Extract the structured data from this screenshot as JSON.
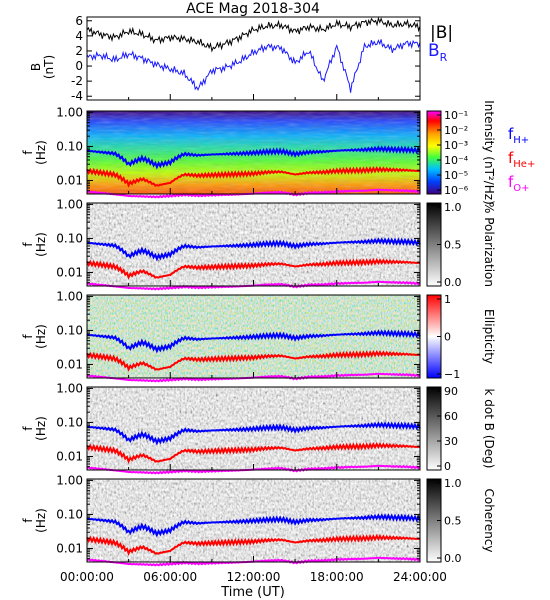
{
  "title": "ACE Mag 2018-304",
  "xlabel": "Time (UT)",
  "x_ticks": [
    "00:00:00",
    "06:00:00",
    "12:00:00",
    "18:00:00",
    "24:00:00"
  ],
  "x_range_hours": [
    0,
    24
  ],
  "colors": {
    "B_total": "#000000",
    "B_R": "#1a1aff",
    "f_H": "#0000ff",
    "f_He": "#ff0000",
    "f_O": "#ff00ff"
  },
  "chart_data": [
    {
      "type": "line",
      "ylabel": "B\n(nT)",
      "ylim": [
        -4.5,
        6.5
      ],
      "y_ticks": [
        "6",
        "4",
        "2",
        "0",
        "-2",
        "-4"
      ],
      "legend": [
        "|B|",
        "BR"
      ],
      "x_hours": [
        0,
        1,
        2,
        3,
        4,
        5,
        6,
        7,
        8,
        9,
        10,
        11,
        12,
        13,
        14,
        15,
        16,
        17,
        18,
        19,
        20,
        21,
        22,
        23,
        24
      ],
      "series": [
        {
          "name": "|B|",
          "values": [
            4.8,
            4.2,
            3.8,
            4.6,
            4.2,
            3.4,
            3.8,
            3.6,
            3.2,
            2.4,
            3.0,
            3.8,
            4.8,
            5.3,
            5.4,
            4.6,
            5.2,
            4.8,
            5.6,
            5.2,
            5.8,
            6.0,
            5.4,
            5.6,
            5.2
          ]
        },
        {
          "name": "BR",
          "values": [
            1.2,
            1.4,
            0.8,
            1.6,
            1.0,
            0.2,
            -0.4,
            -1.0,
            -3.0,
            -0.6,
            -0.2,
            0.6,
            1.8,
            2.6,
            2.4,
            0.4,
            2.0,
            -2.0,
            2.6,
            -3.0,
            2.6,
            3.2,
            2.2,
            3.0,
            3.0
          ]
        }
      ]
    },
    {
      "type": "heatmap",
      "ylabel": "f\n(Hz)",
      "ylim_hz": [
        0.004,
        1.0
      ],
      "y_scale": "log",
      "y_ticks": [
        "1.00",
        "0.10",
        "0.01"
      ],
      "colorbar_label": "Intensity (nT²/Hz)",
      "colorbar_ticks": [
        "10⁻¹",
        "10⁻²",
        "10⁻³",
        "10⁻⁴",
        "10⁻⁵",
        "10⁻⁶"
      ],
      "legend": [
        "fH+",
        "fHe+",
        "fO+"
      ]
    },
    {
      "type": "heatmap",
      "ylabel": "f\n(Hz)",
      "y_scale": "log",
      "y_ticks": [
        "1.00",
        "0.10",
        "0.01"
      ],
      "colorbar_label": "% Polarization",
      "colorbar_ticks": [
        "1.0",
        "0.5",
        "0.0"
      ]
    },
    {
      "type": "heatmap",
      "ylabel": "f\n(Hz)",
      "y_scale": "log",
      "y_ticks": [
        "1.00",
        "0.10",
        "0.01"
      ],
      "colorbar_label": "Ellipticity",
      "colorbar_ticks": [
        "1",
        "0",
        "−1"
      ]
    },
    {
      "type": "heatmap",
      "ylabel": "f\n(Hz)",
      "y_scale": "log",
      "y_ticks": [
        "1.00",
        "0.10",
        "0.01"
      ],
      "colorbar_label": "k dot B (Deg)",
      "colorbar_ticks": [
        "90",
        "60",
        "30",
        "0"
      ]
    },
    {
      "type": "heatmap",
      "ylabel": "f\n(Hz)",
      "y_scale": "log",
      "y_ticks": [
        "1.00",
        "0.10",
        "0.01"
      ],
      "colorbar_label": "Coherency",
      "colorbar_ticks": [
        "1.0",
        "0.5",
        "0.0"
      ]
    }
  ],
  "gyro_lines": {
    "x_hours": [
      0,
      1,
      2,
      3,
      4,
      5,
      6,
      7,
      8,
      9,
      10,
      11,
      12,
      13,
      14,
      15,
      16,
      17,
      18,
      19,
      20,
      21,
      22,
      23,
      24
    ],
    "fH_hz": [
      0.075,
      0.068,
      0.062,
      0.03,
      0.045,
      0.028,
      0.034,
      0.06,
      0.055,
      0.058,
      0.06,
      0.062,
      0.065,
      0.07,
      0.072,
      0.06,
      0.068,
      0.07,
      0.075,
      0.078,
      0.08,
      0.085,
      0.082,
      0.08,
      0.075
    ],
    "fHe_hz": [
      0.019,
      0.017,
      0.015,
      0.008,
      0.011,
      0.007,
      0.0085,
      0.015,
      0.014,
      0.0145,
      0.015,
      0.0155,
      0.016,
      0.0175,
      0.018,
      0.015,
      0.017,
      0.0175,
      0.019,
      0.0195,
      0.02,
      0.021,
      0.0205,
      0.02,
      0.019
    ],
    "fO_hz": [
      0.0047,
      0.0043,
      0.0039,
      0.0035,
      0.0034,
      0.0033,
      0.0035,
      0.0038,
      0.0036,
      0.0037,
      0.0038,
      0.0039,
      0.0041,
      0.0044,
      0.0045,
      0.0038,
      0.0043,
      0.0044,
      0.0047,
      0.0049,
      0.005,
      0.0053,
      0.0051,
      0.005,
      0.0047
    ]
  }
}
